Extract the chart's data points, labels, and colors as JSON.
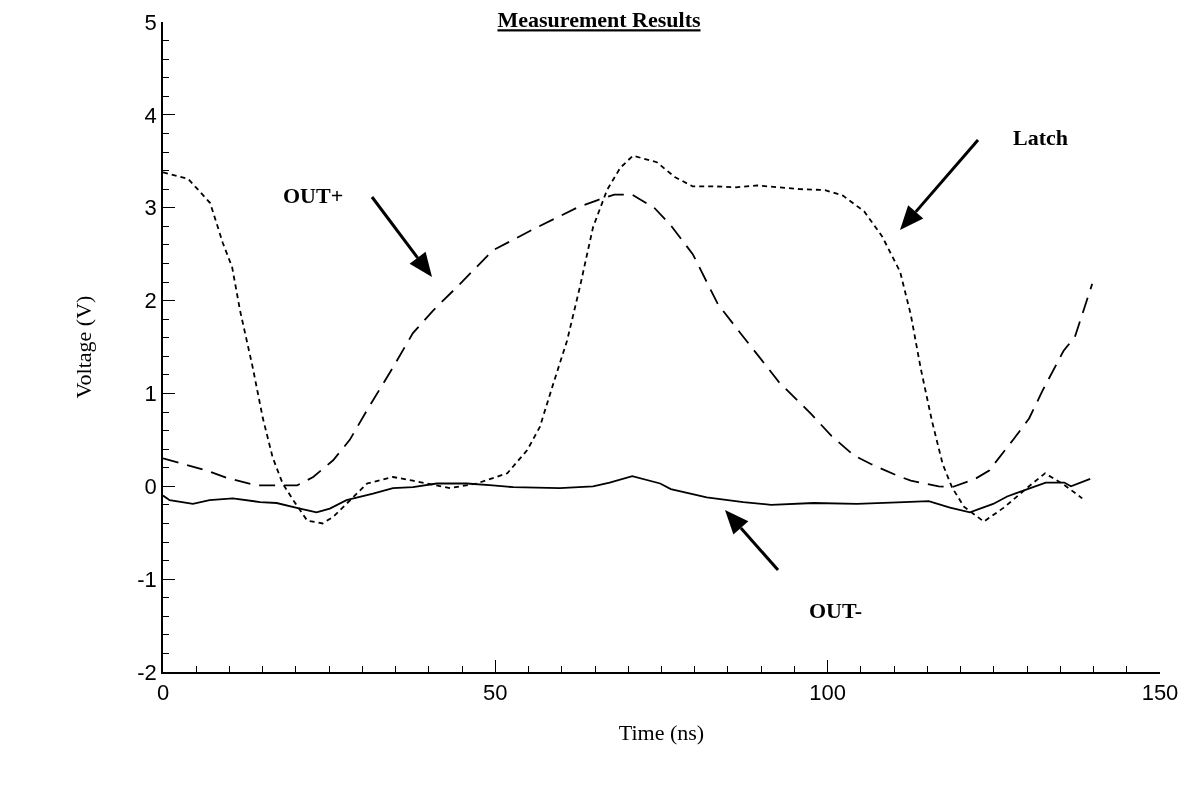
{
  "chart_data": {
    "type": "line",
    "title": "Measurement Results",
    "xlabel": "Time (ns)",
    "ylabel": "Voltage (V)",
    "xlim": [
      0,
      150
    ],
    "xticks": [
      0,
      50,
      100,
      150
    ],
    "ylim": [
      -2,
      5
    ],
    "yticks": [
      -2,
      -1,
      0,
      1,
      2,
      3,
      4,
      5
    ],
    "grid": false,
    "marker": "none",
    "series": [
      {
        "color": "#000000",
        "line_style": "dotted",
        "x": [
          0,
          3.8,
          7.1,
          9,
          10.4,
          11.6,
          13.5,
          15,
          16.5,
          18,
          19.6,
          21.7,
          24,
          25.6,
          30.7,
          34.6,
          37.6,
          43.2,
          47.2,
          51.8,
          54.8,
          56.7,
          58.7,
          60.8,
          62.7,
          64.7,
          66.8,
          68.8,
          70.7,
          74.3,
          77,
          79.7,
          82.9,
          86.2,
          89.4,
          95.8,
          99.6,
          102.3,
          105.5,
          108.2,
          110.9,
          112.5,
          114,
          115.7,
          117.3,
          118.7,
          120.5,
          123.5,
          126.5,
          130.3,
          132.7,
          135.5,
          138.3
        ],
        "values": [
          3.38,
          3.31,
          3.05,
          2.62,
          2.36,
          1.89,
          1.28,
          0.74,
          0.31,
          0.03,
          -0.15,
          -0.37,
          -0.4,
          -0.33,
          0.03,
          0.1,
          0.06,
          -0.02,
          0.03,
          0.14,
          0.39,
          0.64,
          1.1,
          1.57,
          2.14,
          2.79,
          3.19,
          3.43,
          3.56,
          3.49,
          3.33,
          3.23,
          3.23,
          3.22,
          3.24,
          3.2,
          3.19,
          3.13,
          2.96,
          2.69,
          2.31,
          1.85,
          1.27,
          0.7,
          0.24,
          -0.01,
          -0.22,
          -0.38,
          -0.23,
          0,
          0.14,
          0.02,
          -0.13
        ]
      },
      {
        "color": "#000000",
        "line_style": "dashed",
        "x": [
          0,
          6.6,
          9.6,
          14.1,
          16.1,
          20.2,
          22.6,
          25.6,
          28.1,
          30.7,
          34.6,
          37.6,
          40.6,
          44.7,
          49.6,
          56.3,
          62.3,
          65.3,
          67.9,
          70.6,
          73.9,
          76.4,
          79.7,
          83.5,
          87.3,
          89.4,
          92.7,
          97.5,
          100.6,
          104,
          106.5,
          110.3,
          112.5,
          116.7,
          118.7,
          122.2,
          124.3,
          128,
          130.3,
          132.4,
          135.5,
          137.2,
          139.8
        ],
        "values": [
          0.3,
          0.17,
          0.09,
          0.01,
          0.01,
          0.01,
          0.1,
          0.28,
          0.5,
          0.82,
          1.28,
          1.65,
          1.89,
          2.18,
          2.54,
          2.79,
          3.0,
          3.08,
          3.14,
          3.14,
          3.0,
          2.81,
          2.5,
          1.96,
          1.61,
          1.42,
          1.12,
          0.78,
          0.54,
          0.33,
          0.24,
          0.12,
          0.06,
          0,
          -0.01,
          0.08,
          0.17,
          0.51,
          0.73,
          1.04,
          1.46,
          1.61,
          2.18
        ]
      },
      {
        "color": "#000000",
        "line_style": "solid",
        "x": [
          0,
          1,
          4.5,
          7,
          10.5,
          14.6,
          17.1,
          20.6,
          23.1,
          25.1,
          27.6,
          31.6,
          34.6,
          37.6,
          41.2,
          45.7,
          49.6,
          52.7,
          59.7,
          64.7,
          67.2,
          70.6,
          74.8,
          76.4,
          81.8,
          87.3,
          91.5,
          97.9,
          104.4,
          111.5,
          115.2,
          118.4,
          121.4,
          124.9,
          127,
          132.8,
          135.6,
          136.6,
          139.5
        ],
        "values": [
          -0.1,
          -0.15,
          -0.19,
          -0.15,
          -0.13,
          -0.17,
          -0.18,
          -0.24,
          -0.28,
          -0.24,
          -0.15,
          -0.08,
          -0.02,
          -0.01,
          0.03,
          0.03,
          0.01,
          -0.01,
          -0.02,
          0,
          0.04,
          0.11,
          0.03,
          -0.03,
          -0.12,
          -0.17,
          -0.2,
          -0.18,
          -0.19,
          -0.17,
          -0.16,
          -0.23,
          -0.28,
          -0.19,
          -0.11,
          0.04,
          0.04,
          0,
          0.08
        ]
      }
    ],
    "annotations": [
      "OUT+",
      "Latch",
      "OUT-"
    ]
  }
}
